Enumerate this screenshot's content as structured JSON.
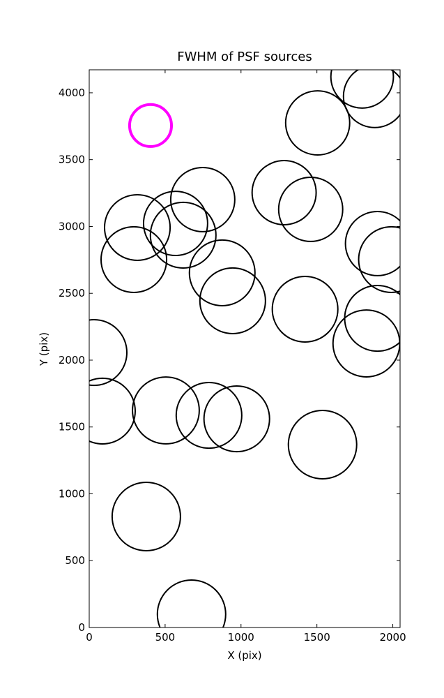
{
  "chart_data": {
    "type": "scatter",
    "title": "FWHM of PSF sources",
    "xlabel": "X (pix)",
    "ylabel": "Y (pix)",
    "x": [
      404,
      1798,
      1881,
      1505,
      1284,
      1459,
      748,
      317,
      569,
      619,
      294,
      876,
      945,
      1899,
      1991,
      1422,
      1899,
      1826,
      32,
      87,
      505,
      789,
      972,
      1537,
      376,
      674
    ],
    "y": [
      3755,
      4120,
      3974,
      3775,
      3253,
      3128,
      3201,
      2992,
      3023,
      2935,
      2752,
      2653,
      2444,
      2872,
      2752,
      2381,
      2313,
      2125,
      2057,
      1619,
      1624,
      1587,
      1561,
      1368,
      830,
      99
    ],
    "sizes": [
      138,
      206,
      206,
      211,
      211,
      211,
      211,
      216,
      211,
      216,
      216,
      216,
      216,
      211,
      216,
      216,
      216,
      220,
      216,
      216,
      220,
      216,
      216,
      225,
      225,
      225
    ],
    "colors": [
      "#ff00ff",
      "#000000",
      "#000000",
      "#000000",
      "#000000",
      "#000000",
      "#000000",
      "#000000",
      "#000000",
      "#000000",
      "#000000",
      "#000000",
      "#000000",
      "#000000",
      "#000000",
      "#000000",
      "#000000",
      "#000000",
      "#000000",
      "#000000",
      "#000000",
      "#000000",
      "#000000",
      "#000000",
      "#000000",
      "#000000"
    ],
    "xlim": [
      0,
      2048
    ],
    "ylim": [
      0,
      4172
    ],
    "xticks": [
      0,
      500,
      1000,
      1500,
      2000
    ],
    "yticks": [
      0,
      500,
      1000,
      1500,
      2000,
      2500,
      3000,
      3500,
      4000
    ]
  }
}
